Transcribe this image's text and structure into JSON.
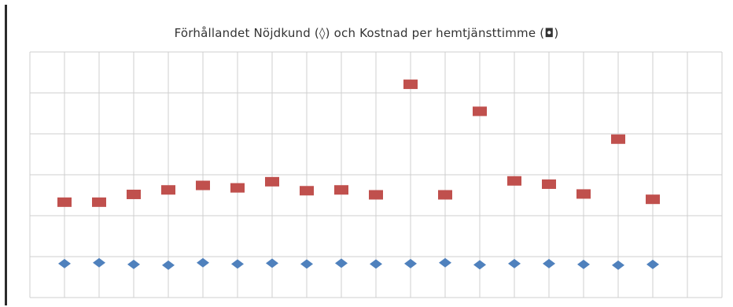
{
  "chart_data": {
    "type": "scatter",
    "title": "Förhållandet Nöjdkund (◊) och Kostnad per hemtjänsttimme (◘)",
    "xlabel": "",
    "ylabel": "",
    "x": [
      1,
      2,
      3,
      4,
      5,
      6,
      7,
      8,
      9,
      10,
      11,
      12,
      13,
      14,
      15,
      16,
      17,
      18
    ],
    "xlim": [
      0,
      20
    ],
    "ylim": [
      0,
      6
    ],
    "grid": true,
    "legend": "none",
    "series": [
      {
        "marker": "square",
        "color": "#c0504d",
        "values": [
          2.33,
          2.33,
          2.52,
          2.63,
          2.74,
          2.68,
          2.83,
          2.61,
          2.63,
          2.51,
          5.21,
          2.51,
          4.55,
          2.85,
          2.77,
          2.53,
          3.87,
          2.4
        ]
      },
      {
        "marker": "diamond",
        "color": "#4f81bd",
        "values": [
          0.83,
          0.85,
          0.81,
          0.79,
          0.85,
          0.82,
          0.84,
          0.82,
          0.84,
          0.82,
          0.83,
          0.85,
          0.8,
          0.83,
          0.83,
          0.81,
          0.79,
          0.81
        ]
      }
    ]
  }
}
